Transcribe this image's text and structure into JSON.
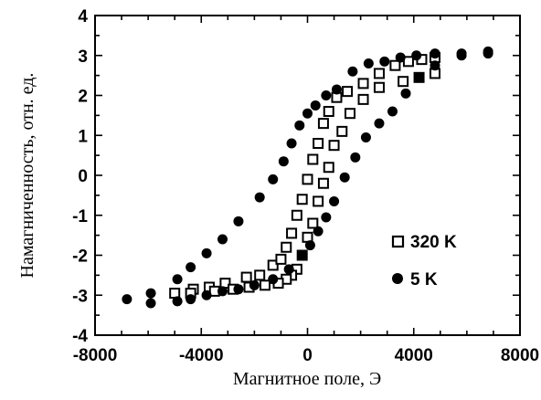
{
  "chart_data": {
    "type": "scatter",
    "title": "",
    "xlabel": "Магнитное поле, Э",
    "ylabel": "Намагниченность, отн. ед.",
    "xlim": [
      -8000,
      8000
    ],
    "ylim": [
      -4,
      4
    ],
    "x_ticks": [
      -8000,
      -4000,
      0,
      4000,
      8000
    ],
    "x_tick_labels": [
      "-8000",
      "-4000",
      "0",
      "4000",
      "8000"
    ],
    "y_ticks": [
      -4,
      -3,
      -2,
      -1,
      0,
      1,
      2,
      3,
      4
    ],
    "y_tick_labels": [
      "-4",
      "-3",
      "-2",
      "-1",
      "0",
      "1",
      "2",
      "3",
      "4"
    ],
    "grid": false,
    "legend_position": "right",
    "series": [
      {
        "name": "320 K",
        "marker": "open-square",
        "color": "#000000",
        "x": [
          -5000,
          -4300,
          -3700,
          -3100,
          -2300,
          -1800,
          -1300,
          -1000,
          -800,
          -600,
          -400,
          -200,
          0,
          200,
          400,
          600,
          800,
          1100,
          1500,
          2100,
          2700,
          3300,
          3800,
          4300,
          4800,
          4800,
          4200,
          3600,
          2700,
          2100,
          1600,
          1300,
          1000,
          800,
          600,
          400,
          200,
          0,
          -200,
          -400,
          -600,
          -800,
          -1100,
          -1600,
          -2200,
          -2800,
          -3500,
          -4400
        ],
        "y": [
          -2.95,
          -2.85,
          -2.8,
          -2.7,
          -2.55,
          -2.5,
          -2.25,
          -2.1,
          -1.8,
          -1.45,
          -1.0,
          -0.6,
          -0.1,
          0.4,
          0.8,
          1.3,
          1.6,
          1.95,
          2.1,
          2.3,
          2.55,
          2.75,
          2.85,
          2.9,
          2.95,
          2.55,
          2.45,
          2.35,
          2.2,
          1.9,
          1.55,
          1.1,
          0.75,
          0.2,
          -0.2,
          -0.65,
          -1.2,
          -1.55,
          -2.0,
          -2.35,
          -2.5,
          -2.6,
          -2.7,
          -2.75,
          -2.8,
          -2.85,
          -2.9,
          -2.95
        ]
      },
      {
        "name": "5 K",
        "marker": "filled-circle",
        "color": "#000000",
        "x": [
          -6800,
          -5900,
          -4900,
          -4400,
          -3800,
          -3200,
          -2600,
          -1800,
          -1300,
          -900,
          -600,
          -300,
          0,
          300,
          700,
          1100,
          1700,
          2300,
          2900,
          3500,
          4100,
          4800,
          5800,
          6800,
          6800,
          5800,
          4800,
          4200,
          3700,
          3200,
          2700,
          2200,
          1800,
          1400,
          1000,
          700,
          400,
          100,
          -200,
          -700,
          -1300,
          -2000,
          -2600,
          -3200,
          -3800,
          -4400,
          -4900,
          -5900
        ],
        "y": [
          -3.1,
          -2.95,
          -2.6,
          -2.3,
          -1.95,
          -1.6,
          -1.15,
          -0.55,
          -0.1,
          0.35,
          0.8,
          1.25,
          1.55,
          1.75,
          2.0,
          2.15,
          2.6,
          2.8,
          2.85,
          2.95,
          3.0,
          3.05,
          3.05,
          3.05,
          3.1,
          3.0,
          2.75,
          2.45,
          2.05,
          1.6,
          1.3,
          0.95,
          0.45,
          -0.05,
          -0.65,
          -1.05,
          -1.4,
          -1.75,
          -2.0,
          -2.35,
          -2.6,
          -2.75,
          -2.85,
          -2.9,
          -3.0,
          -3.1,
          -3.15,
          -3.2
        ]
      }
    ]
  }
}
